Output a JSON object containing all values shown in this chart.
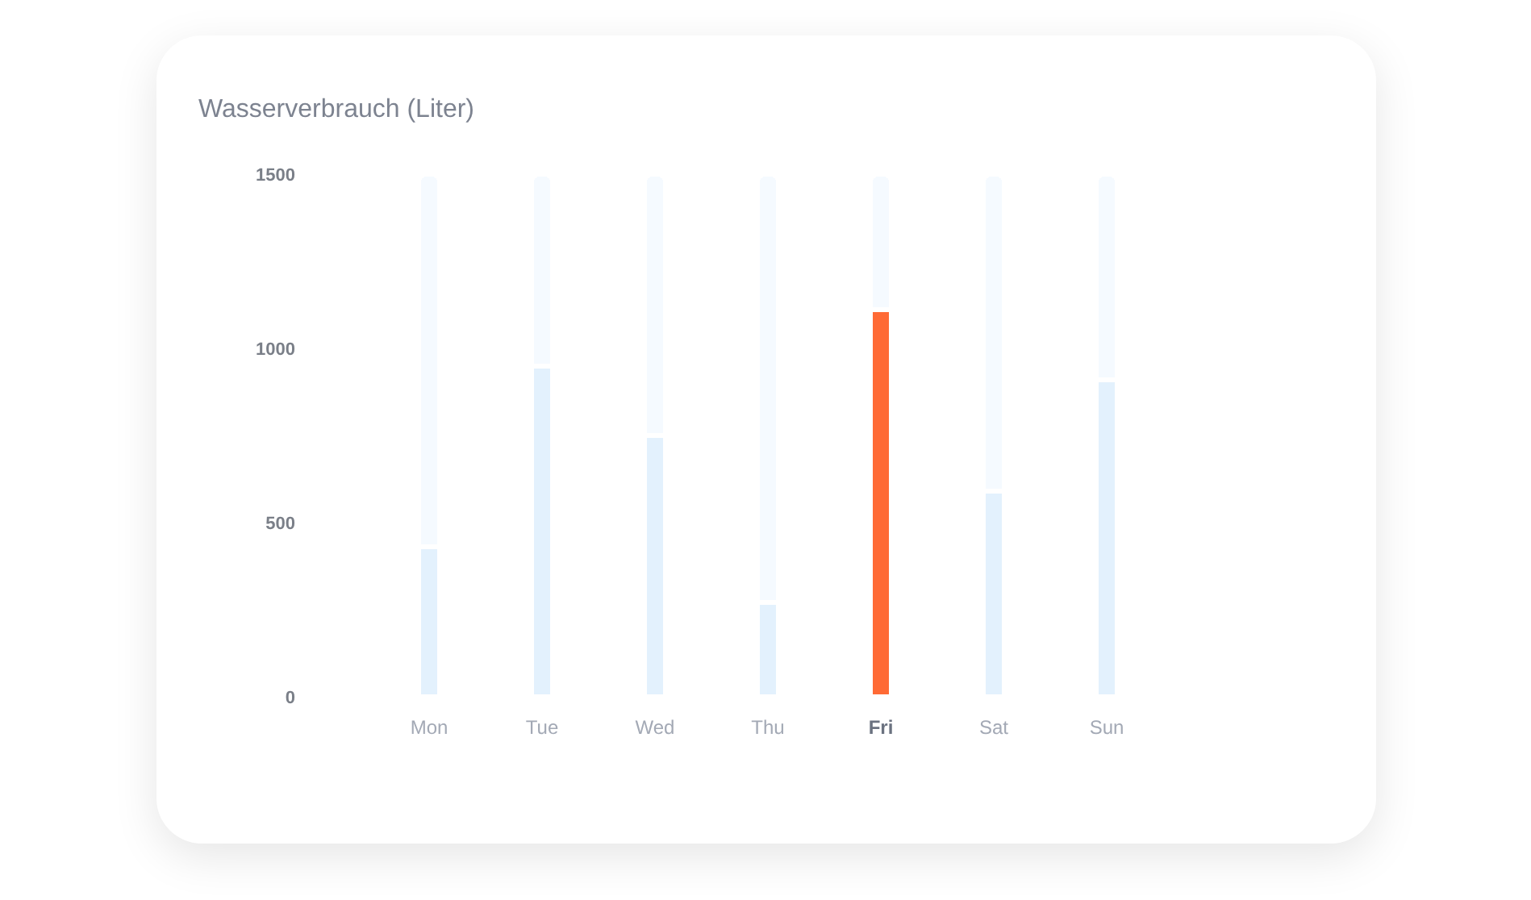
{
  "chart_data": {
    "type": "bar",
    "title": "Wasserverbrauch (Liter)",
    "categories": [
      "Mon",
      "Tue",
      "Wed",
      "Thu",
      "Fri",
      "Sat",
      "Sun"
    ],
    "stacked": true,
    "series": [
      {
        "colors": [
          "#e3f1fd",
          "#e3f1fd",
          "#e3f1fd",
          "#e3f1fd",
          "#ff6a35",
          "#e3f1fd",
          "#e3f1fd"
        ],
        "values": [
          430,
          950,
          750,
          270,
          1110,
          590,
          910
        ]
      },
      {
        "color": "#f5faff",
        "values": [
          1070,
          550,
          750,
          1230,
          390,
          910,
          590
        ]
      }
    ],
    "ylim": [
      0,
      1500
    ],
    "yticks": [
      0,
      500,
      1000,
      1500
    ]
  }
}
